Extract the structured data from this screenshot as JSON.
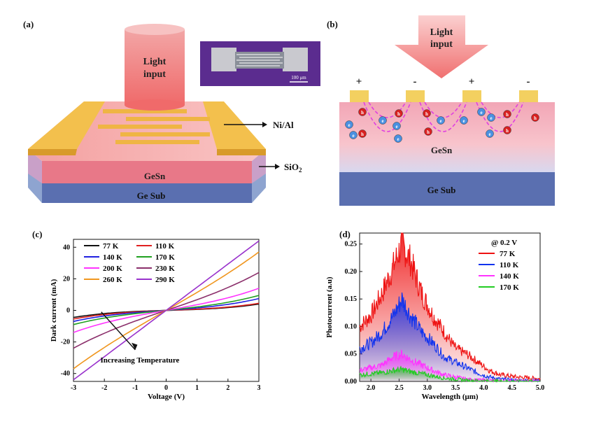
{
  "panels": {
    "a": {
      "label": "(a)",
      "light": "Light\ninput",
      "gesn": "GeSn",
      "sub": "Ge Sub",
      "nial": "Ni/Al",
      "sio2": "SiO",
      "sio2_sub": "2",
      "scale": "100 μm"
    },
    "b": {
      "label": "(b)",
      "light": "Light\ninput",
      "signs": [
        "+",
        "-",
        "+",
        "-"
      ],
      "gesn": "GeSn",
      "sub": "Ge Sub",
      "electron": "e",
      "hole": "h"
    },
    "c": {
      "label": "(c)",
      "annotation": "Increasing Temperature"
    },
    "d": {
      "label": "(d)",
      "bias": "@ 0.2 V"
    }
  },
  "chart_data": [
    {
      "type": "line",
      "xlabel": "Voltage (V)",
      "ylabel": "Dark current (mA)",
      "xlim": [
        -3,
        3
      ],
      "ylim": [
        -45,
        45
      ],
      "xticks": [
        -3,
        -2,
        -1,
        0,
        1,
        2,
        3
      ],
      "yticks": [
        -40,
        -20,
        0,
        20,
        40
      ],
      "legend": "top-left",
      "series": [
        {
          "name": "77 K",
          "color": "#111111",
          "v_neg3": -4.5,
          "v_pos3": 4
        },
        {
          "name": "110 K",
          "color": "#e02020",
          "v_neg3": -5.5,
          "v_pos3": 4.5
        },
        {
          "name": "140 K",
          "color": "#2020e0",
          "v_neg3": -7,
          "v_pos3": 7.5
        },
        {
          "name": "170 K",
          "color": "#20a020",
          "v_neg3": -9,
          "v_pos3": 9.5
        },
        {
          "name": "200 K",
          "color": "#ff33ff",
          "v_neg3": -14,
          "v_pos3": 14
        },
        {
          "name": "230 K",
          "color": "#8b2f6b",
          "v_neg3": -24,
          "v_pos3": 24
        },
        {
          "name": "260 K",
          "color": "#f0961e",
          "v_neg3": -37,
          "v_pos3": 37
        },
        {
          "name": "290 K",
          "color": "#9932cc",
          "v_neg3": -44,
          "v_pos3": 44
        }
      ]
    },
    {
      "type": "area",
      "xlabel": "Wavelength (μm)",
      "ylabel": "Photocurrent (a.u)",
      "xlim": [
        1.8,
        5.0
      ],
      "ylim": [
        0,
        0.27
      ],
      "xticks": [
        2.0,
        2.5,
        3.0,
        3.5,
        4.0,
        4.5,
        5.0
      ],
      "yticks": [
        0.0,
        0.05,
        0.1,
        0.15,
        0.2,
        0.25
      ],
      "ytick_labels": [
        "0.00",
        "0.05",
        "0.10",
        "0.15",
        "0.20",
        "0.25"
      ],
      "legend": "top-right",
      "series": [
        {
          "name": "77 K",
          "color": "#ee1111",
          "x": [
            1.8,
            2.0,
            2.2,
            2.4,
            2.55,
            2.7,
            2.9,
            3.1,
            3.3,
            3.5,
            3.7,
            3.9,
            4.1,
            4.3,
            4.6,
            5.0
          ],
          "y": [
            0.1,
            0.12,
            0.16,
            0.21,
            0.25,
            0.22,
            0.16,
            0.12,
            0.09,
            0.06,
            0.05,
            0.035,
            0.02,
            0.012,
            0.008,
            0.005
          ]
        },
        {
          "name": "110 K",
          "color": "#1133ee",
          "x": [
            1.8,
            2.0,
            2.2,
            2.4,
            2.55,
            2.7,
            2.9,
            3.1,
            3.3,
            3.5,
            3.7,
            3.9,
            4.1,
            4.3,
            4.6,
            5.0
          ],
          "y": [
            0.06,
            0.07,
            0.09,
            0.12,
            0.15,
            0.12,
            0.09,
            0.07,
            0.045,
            0.035,
            0.025,
            0.015,
            0.008,
            0.004,
            0.002,
            0.001
          ]
        },
        {
          "name": "140 K",
          "color": "#ff33ff",
          "x": [
            1.8,
            2.0,
            2.2,
            2.4,
            2.55,
            2.7,
            2.9,
            3.1,
            3.3,
            3.5,
            3.7,
            4.0,
            4.5,
            5.0
          ],
          "y": [
            0.02,
            0.025,
            0.03,
            0.045,
            0.05,
            0.04,
            0.03,
            0.02,
            0.012,
            0.008,
            0.004,
            0.002,
            0.001,
            0.0
          ]
        },
        {
          "name": "170 K",
          "color": "#22cc22",
          "x": [
            1.8,
            2.0,
            2.2,
            2.4,
            2.55,
            2.7,
            2.9,
            3.1,
            3.3,
            3.5,
            3.7,
            4.0,
            4.5,
            5.0
          ],
          "y": [
            0.012,
            0.014,
            0.016,
            0.02,
            0.022,
            0.018,
            0.014,
            0.01,
            0.006,
            0.004,
            0.002,
            0.001,
            0.0,
            0.0
          ]
        }
      ]
    }
  ]
}
